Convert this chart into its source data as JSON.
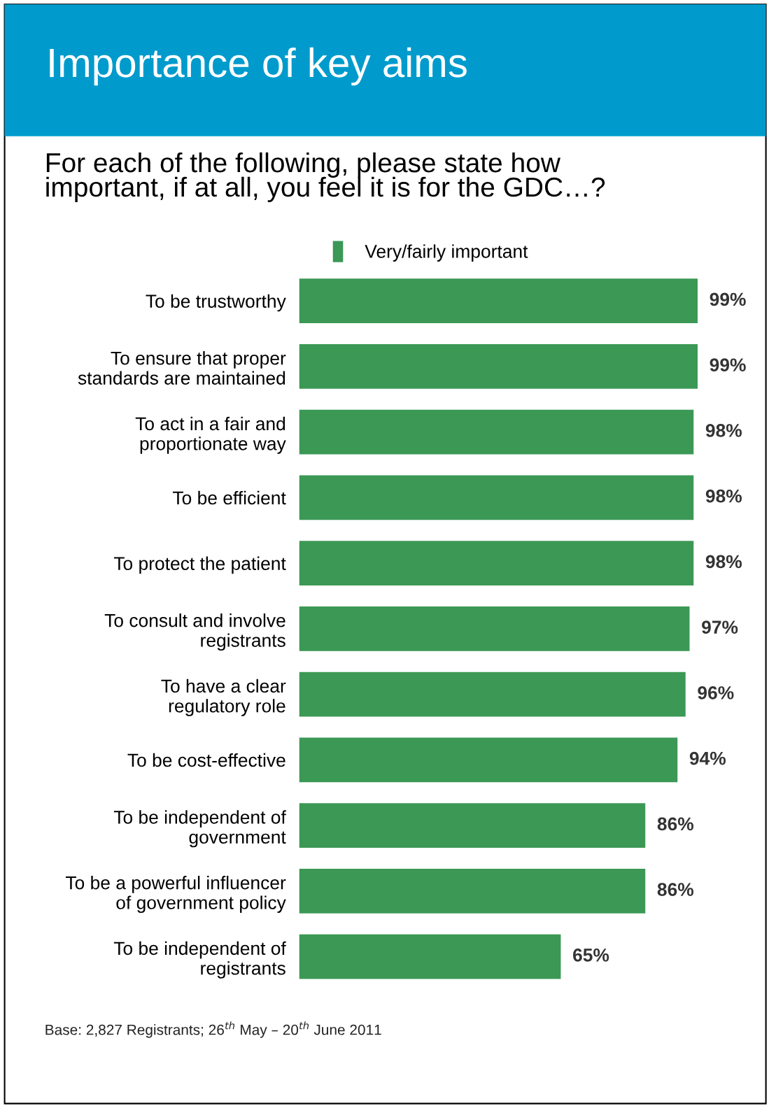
{
  "chart_data": {
    "type": "bar",
    "orientation": "horizontal",
    "title": "Importance of key aims",
    "subtitle": "For each of the following, please state how\nimportant, if at all, you feel it is for the GDC…?",
    "categories": [
      "To be trustworthy",
      "To ensure that proper\nstandards are maintained",
      "To act in a fair and\nproportionate way",
      "To be efficient",
      "To protect the patient",
      "To consult and involve\nregistrants",
      "To have a clear\nregulatory role",
      "To be cost-effective",
      "To be independent of\ngovernment",
      "To be a powerful influencer\nof government policy",
      "To be independent of\nregistrants"
    ],
    "series": [
      {
        "name": "Very/fairly important",
        "color": "#3b9855",
        "values": [
          99,
          99,
          98,
          98,
          98,
          97,
          96,
          94,
          86,
          86,
          65
        ],
        "value_labels": [
          "99%",
          "99%",
          "98%",
          "98%",
          "98%",
          "97%",
          "96%",
          "94%",
          "86%",
          "86%",
          "65%"
        ]
      }
    ],
    "tick_labels": "y",
    "grid": false,
    "legend": "top",
    "annotations": [
      "Base: 2,827 Registrants; 26$^{th}$ May – 20$^{th}$ June 2011"
    ]
  }
}
